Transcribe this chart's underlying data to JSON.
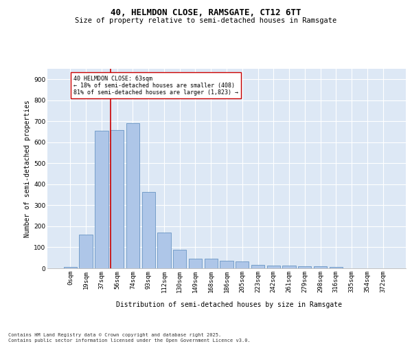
{
  "title1": "40, HELMDON CLOSE, RAMSGATE, CT12 6TT",
  "title2": "Size of property relative to semi-detached houses in Ramsgate",
  "xlabel": "Distribution of semi-detached houses by size in Ramsgate",
  "ylabel": "Number of semi-detached properties",
  "bar_labels": [
    "0sqm",
    "19sqm",
    "37sqm",
    "56sqm",
    "74sqm",
    "93sqm",
    "112sqm",
    "130sqm",
    "149sqm",
    "168sqm",
    "186sqm",
    "205sqm",
    "223sqm",
    "242sqm",
    "261sqm",
    "279sqm",
    "298sqm",
    "316sqm",
    "335sqm",
    "354sqm",
    "372sqm"
  ],
  "bar_values": [
    8,
    160,
    655,
    660,
    690,
    365,
    170,
    88,
    47,
    47,
    37,
    32,
    15,
    13,
    13,
    10,
    10,
    5,
    1,
    0,
    0
  ],
  "bar_color": "#aec6e8",
  "bar_edge_color": "#5588bb",
  "background_color": "#dde8f5",
  "grid_color": "#ffffff",
  "vline_color": "#cc0000",
  "annotation_text": "40 HELMDON CLOSE: 63sqm\n← 18% of semi-detached houses are smaller (408)\n81% of semi-detached houses are larger (1,823) →",
  "annotation_box_color": "#ffffff",
  "annotation_box_edge": "#cc0000",
  "footer_text": "Contains HM Land Registry data © Crown copyright and database right 2025.\nContains public sector information licensed under the Open Government Licence v3.0.",
  "ylim": [
    0,
    950
  ],
  "yticks": [
    0,
    100,
    200,
    300,
    400,
    500,
    600,
    700,
    800,
    900
  ],
  "title1_fontsize": 9,
  "title2_fontsize": 7.5,
  "xlabel_fontsize": 7,
  "ylabel_fontsize": 7,
  "tick_fontsize": 6.5,
  "annotation_fontsize": 6,
  "footer_fontsize": 5
}
